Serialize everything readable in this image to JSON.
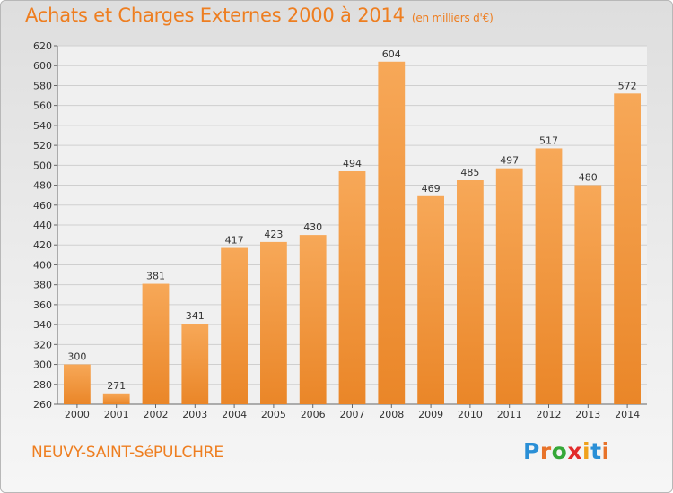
{
  "title": "Achats et Charges Externes 2000 à 2014",
  "subtitle": "(en milliers d'€)",
  "commune": "NEUVY-SAINT-SéPULCHRE",
  "logo": {
    "letters": [
      "P",
      "r",
      "o",
      "x",
      "i",
      "t",
      "i"
    ],
    "colors": [
      "#2a8fd6",
      "#e8732a",
      "#35a838",
      "#e22b2b",
      "#f0a11c",
      "#2a8fd6",
      "#e8732a"
    ]
  },
  "colors": {
    "title": "#ee7e20",
    "bar_top": "#f7a858",
    "bar_bottom": "#ea8628",
    "grid": "#cfcfcf"
  },
  "chart_data": {
    "type": "bar",
    "title": "Achats et Charges Externes 2000 à 2014",
    "subtitle": "(en milliers d'€)",
    "categories": [
      "2000",
      "2001",
      "2002",
      "2003",
      "2004",
      "2005",
      "2006",
      "2007",
      "2008",
      "2009",
      "2010",
      "2011",
      "2012",
      "2013",
      "2014"
    ],
    "values": [
      300,
      271,
      381,
      341,
      417,
      423,
      430,
      494,
      604,
      469,
      485,
      497,
      517,
      480,
      572
    ],
    "ylim": [
      260,
      620
    ],
    "yticks": [
      260,
      280,
      300,
      320,
      340,
      360,
      380,
      400,
      420,
      440,
      460,
      480,
      500,
      520,
      540,
      560,
      580,
      600,
      620
    ],
    "grid": true,
    "xlabel": "",
    "ylabel": ""
  }
}
